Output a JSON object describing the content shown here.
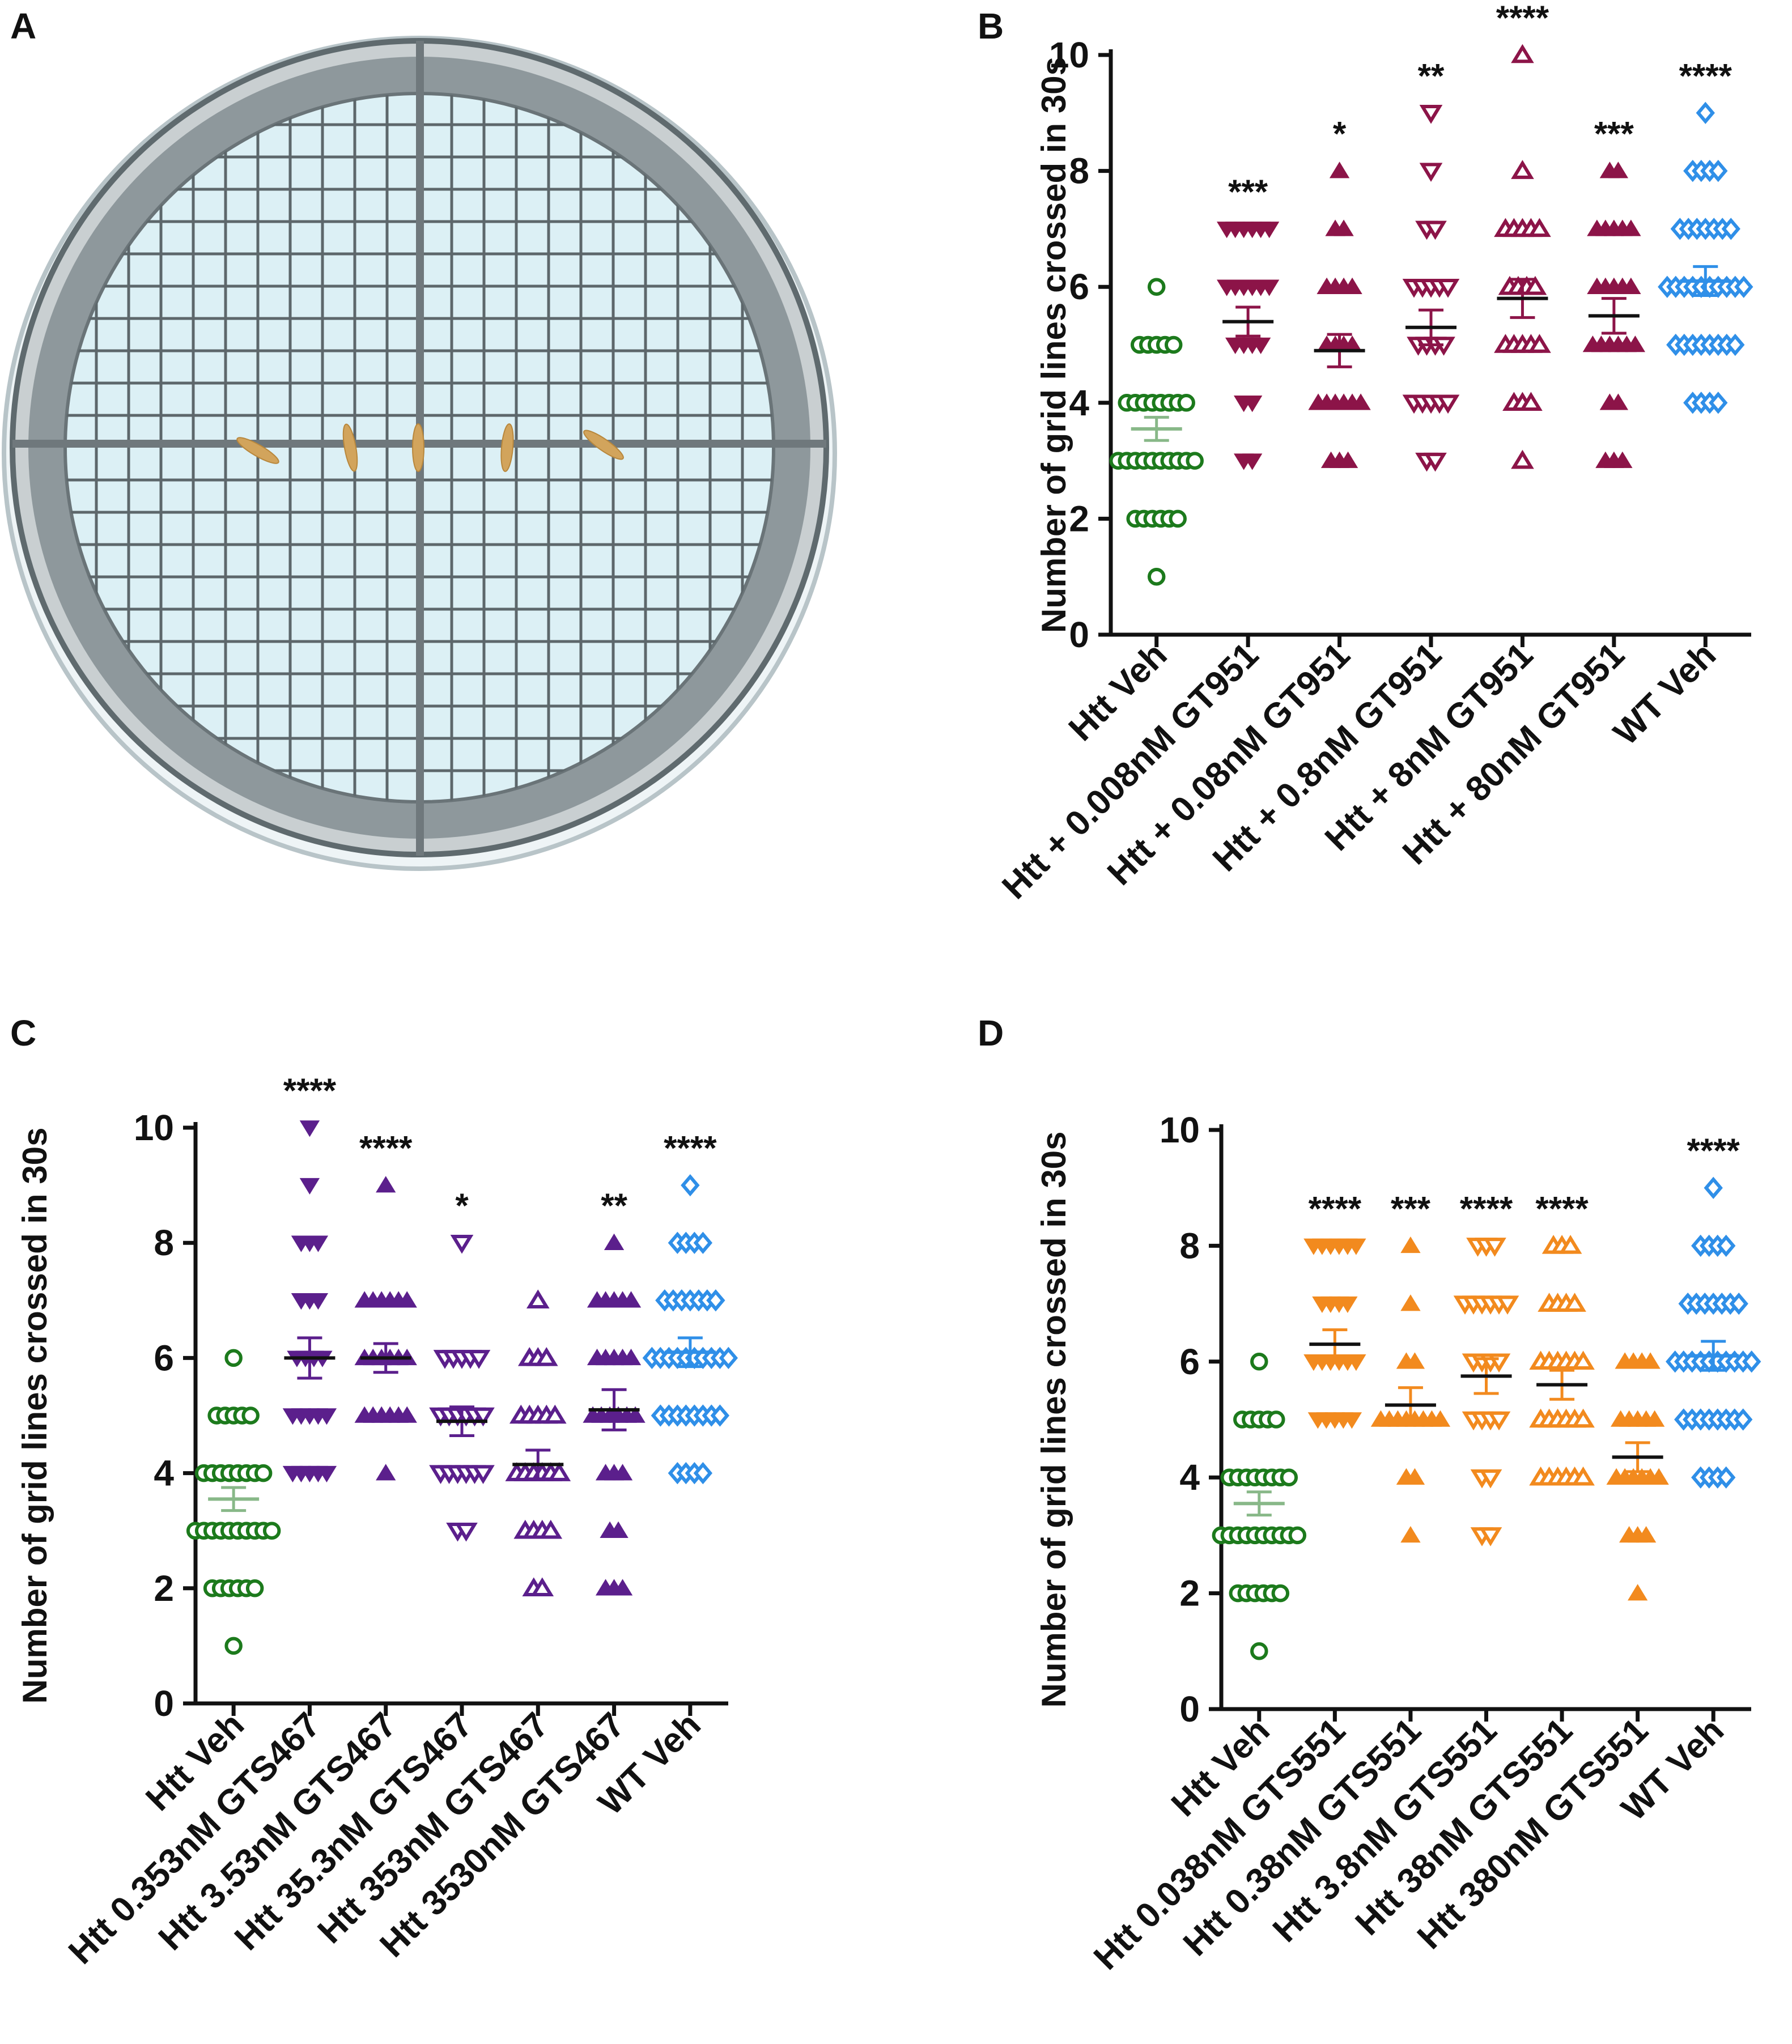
{
  "panels": {
    "A": {
      "label": "A",
      "title": "Arena: petri dish with grid, larvae placed on center line"
    },
    "B": {
      "label": "B"
    },
    "C": {
      "label": "C"
    },
    "D": {
      "label": "D"
    }
  },
  "colors": {
    "green": "#1c7a1c",
    "maroon": "#8c1448",
    "purple": "#5b1f8c",
    "orange": "#f28a1e",
    "blue": "#2f8fe8",
    "axis": "#111111",
    "mean": "#111111",
    "dish_fill": "#dcf0f5",
    "dish_ring": "#8a9498",
    "larva": "#d2a45c"
  },
  "chart_data": [
    {
      "panel": "B",
      "type": "scatter",
      "title": "",
      "xlabel": "",
      "ylabel": "Number of grid lines crossed in 30s",
      "ylim": [
        0,
        10
      ],
      "yticks": [
        0,
        2,
        4,
        6,
        8,
        10
      ],
      "categories": [
        "Htt Veh",
        "Htt + 0.008nM GT951",
        "Htt + 0.08nM GT951",
        "Htt + 0.8nM GT951",
        "Htt + 8nM GT951",
        "Htt + 80nM GT951",
        "WT Veh"
      ],
      "series": [
        {
          "name": "Htt Veh",
          "color_key": "green",
          "marker": "circle",
          "distribution": {
            "1": 1,
            "2": 6,
            "3": 10,
            "4": 8,
            "5": 5,
            "6": 1
          },
          "mean": 3.55,
          "sem": 0.2,
          "significance": ""
        },
        {
          "name": "Htt + 0.008nM GT951",
          "color_key": "maroon",
          "marker": "tri-down-filled",
          "distribution": {
            "3": 2,
            "4": 2,
            "5": 4,
            "6": 6,
            "7": 6
          },
          "mean": 5.4,
          "sem": 0.25,
          "significance": "***"
        },
        {
          "name": "Htt + 0.08nM GT951",
          "color_key": "maroon",
          "marker": "tri-up-filled",
          "distribution": {
            "3": 3,
            "4": 6,
            "5": 4,
            "6": 4,
            "7": 2,
            "8": 1
          },
          "mean": 4.9,
          "sem": 0.28,
          "significance": "*"
        },
        {
          "name": "Htt + 0.8nM GT951",
          "color_key": "maroon",
          "marker": "tri-down-open",
          "distribution": {
            "3": 2,
            "4": 5,
            "5": 4,
            "6": 5,
            "7": 2,
            "8": 1,
            "9": 1
          },
          "mean": 5.3,
          "sem": 0.3,
          "significance": "**"
        },
        {
          "name": "Htt + 8nM GT951",
          "color_key": "maroon",
          "marker": "tri-up-open",
          "distribution": {
            "3": 1,
            "4": 3,
            "5": 5,
            "6": 4,
            "7": 5,
            "8": 1,
            "10": 1
          },
          "mean": 5.8,
          "sem": 0.33,
          "significance": "****"
        },
        {
          "name": "Htt + 80nM GT951",
          "color_key": "maroon",
          "marker": "tri-up-filled",
          "distribution": {
            "3": 3,
            "4": 2,
            "5": 6,
            "6": 5,
            "7": 5,
            "8": 2
          },
          "mean": 5.5,
          "sem": 0.3,
          "significance": "***"
        },
        {
          "name": "WT Veh",
          "color_key": "blue",
          "marker": "diamond",
          "distribution": {
            "4": 4,
            "5": 8,
            "6": 10,
            "7": 7,
            "8": 4,
            "9": 1
          },
          "mean": 6.1,
          "sem": 0.25,
          "significance": "****"
        }
      ]
    },
    {
      "panel": "C",
      "type": "scatter",
      "title": "",
      "xlabel": "",
      "ylabel": "Number of grid lines crossed in 30s",
      "ylim": [
        0,
        10
      ],
      "yticks": [
        0,
        2,
        4,
        6,
        8,
        10
      ],
      "categories": [
        "Htt Veh",
        "Htt 0.353nM GTS467",
        "Htt 3.53nM GTS467",
        "Htt 35.3nM GTS467",
        "Htt 353nM GTS467",
        "Htt 3530nM GTS467",
        "WT Veh"
      ],
      "series": [
        {
          "name": "Htt Veh",
          "color_key": "green",
          "marker": "circle",
          "distribution": {
            "1": 1,
            "2": 6,
            "3": 10,
            "4": 8,
            "5": 5,
            "6": 1
          },
          "mean": 3.55,
          "sem": 0.2,
          "significance": ""
        },
        {
          "name": "Htt 0.353nM GTS467",
          "color_key": "purple",
          "marker": "tri-down-filled",
          "distribution": {
            "4": 5,
            "5": 5,
            "6": 4,
            "7": 3,
            "8": 3,
            "9": 1,
            "10": 1
          },
          "mean": 6.0,
          "sem": 0.35,
          "significance": "****"
        },
        {
          "name": "Htt 3.53nM GTS467",
          "color_key": "purple",
          "marker": "tri-up-filled",
          "distribution": {
            "4": 1,
            "5": 6,
            "6": 6,
            "7": 6,
            "9": 1
          },
          "mean": 6.0,
          "sem": 0.25,
          "significance": "****"
        },
        {
          "name": "Htt 35.3nM GTS467",
          "color_key": "purple",
          "marker": "tri-down-open",
          "distribution": {
            "3": 2,
            "4": 6,
            "5": 6,
            "6": 5,
            "8": 1
          },
          "mean": 4.9,
          "sem": 0.25,
          "significance": "*"
        },
        {
          "name": "Htt 353nM GTS467",
          "color_key": "purple",
          "marker": "tri-up-open",
          "distribution": {
            "2": 2,
            "3": 4,
            "4": 6,
            "5": 5,
            "6": 3,
            "7": 1
          },
          "mean": 4.15,
          "sem": 0.25,
          "significance": ""
        },
        {
          "name": "Htt 3530nM GTS467",
          "color_key": "purple",
          "marker": "tri-up-filled",
          "distribution": {
            "2": 3,
            "3": 2,
            "4": 3,
            "5": 6,
            "6": 5,
            "7": 5,
            "8": 1
          },
          "mean": 5.1,
          "sem": 0.35,
          "significance": "**"
        },
        {
          "name": "WT Veh",
          "color_key": "blue",
          "marker": "diamond",
          "distribution": {
            "4": 4,
            "5": 8,
            "6": 10,
            "7": 7,
            "8": 4,
            "9": 1
          },
          "mean": 6.1,
          "sem": 0.25,
          "significance": "****"
        }
      ]
    },
    {
      "panel": "D",
      "type": "scatter",
      "title": "",
      "xlabel": "",
      "ylabel": "Number of grid lines crossed in 30s",
      "ylim": [
        0,
        10
      ],
      "yticks": [
        0,
        2,
        4,
        6,
        8,
        10
      ],
      "categories": [
        "Htt Veh",
        "Htt 0.038nM GTS551",
        "Htt 0.38nM GTS551",
        "Htt 3.8nM GTS551",
        "Htt 38nM GTS551",
        "Htt 380nM GTS551",
        "WT Veh"
      ],
      "series": [
        {
          "name": "Htt Veh",
          "color_key": "green",
          "marker": "circle",
          "distribution": {
            "1": 1,
            "2": 6,
            "3": 10,
            "4": 8,
            "5": 5,
            "6": 1
          },
          "mean": 3.55,
          "sem": 0.2,
          "significance": ""
        },
        {
          "name": "Htt 0.038nM GTS551",
          "color_key": "orange",
          "marker": "tri-down-filled",
          "distribution": {
            "5": 5,
            "6": 6,
            "7": 4,
            "8": 6
          },
          "mean": 6.3,
          "sem": 0.25,
          "significance": "****"
        },
        {
          "name": "Htt 0.38nM GTS551",
          "color_key": "orange",
          "marker": "tri-up-filled",
          "distribution": {
            "3": 1,
            "4": 2,
            "5": 8,
            "6": 2,
            "7": 1,
            "8": 1
          },
          "mean": 5.25,
          "sem": 0.3,
          "significance": "***"
        },
        {
          "name": "Htt 3.8nM GTS551",
          "color_key": "orange",
          "marker": "tri-down-open",
          "distribution": {
            "3": 2,
            "4": 2,
            "5": 4,
            "6": 4,
            "7": 6,
            "8": 3
          },
          "mean": 5.75,
          "sem": 0.3,
          "significance": "****"
        },
        {
          "name": "Htt 38nM GTS551",
          "color_key": "orange",
          "marker": "tri-up-open",
          "distribution": {
            "4": 6,
            "5": 6,
            "6": 6,
            "7": 4,
            "8": 3
          },
          "mean": 5.6,
          "sem": 0.25,
          "significance": "****"
        },
        {
          "name": "Htt 380nM GTS551",
          "color_key": "orange",
          "marker": "tri-up-filled",
          "distribution": {
            "2": 1,
            "3": 3,
            "4": 6,
            "5": 5,
            "6": 4
          },
          "mean": 4.35,
          "sem": 0.25,
          "significance": ""
        },
        {
          "name": "WT Veh",
          "color_key": "blue",
          "marker": "diamond",
          "distribution": {
            "4": 4,
            "5": 8,
            "6": 10,
            "7": 7,
            "8": 4,
            "9": 1
          },
          "mean": 6.1,
          "sem": 0.25,
          "significance": "****"
        }
      ]
    }
  ]
}
